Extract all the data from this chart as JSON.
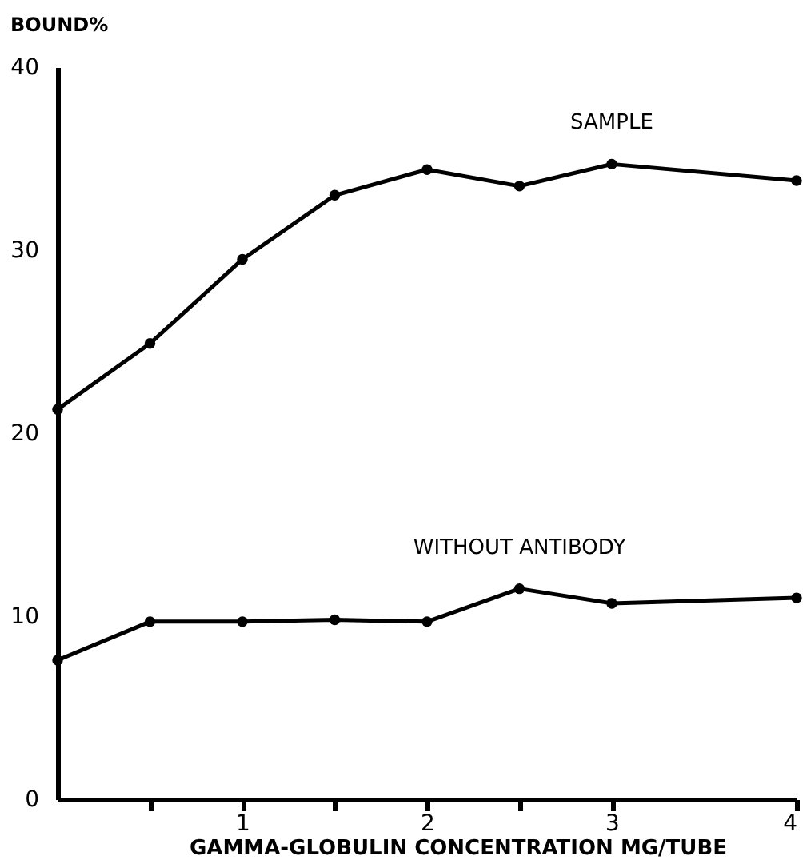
{
  "chart_data": {
    "type": "line",
    "xlabel": "GAMMA-GLOBULIN CONCENTRATION MG/TUBE",
    "ylabel": "BOUND%",
    "x": [
      0,
      0.5,
      1,
      1.5,
      2,
      2.5,
      3,
      4
    ],
    "series": [
      {
        "name": "SAMPLE",
        "color": "#000000",
        "values": [
          21.3,
          24.9,
          29.5,
          33.0,
          34.4,
          33.5,
          34.7,
          33.8
        ]
      },
      {
        "name": "WITHOUT ANTIBODY",
        "color": "#000000",
        "values": [
          7.6,
          9.7,
          9.7,
          9.8,
          9.7,
          11.5,
          10.7,
          11.0
        ]
      }
    ],
    "xlim": [
      0,
      4
    ],
    "xticks": [
      {
        "value": 0.5,
        "label": null
      },
      1,
      {
        "value": 1.5,
        "label": null
      },
      2,
      {
        "value": 2.5,
        "label": null
      },
      3,
      4
    ],
    "ylim": [
      0,
      40
    ],
    "yticks": [
      0,
      10,
      20,
      30,
      40
    ],
    "grid": false,
    "legend": false,
    "marker": "circle",
    "line_style": "solid"
  }
}
